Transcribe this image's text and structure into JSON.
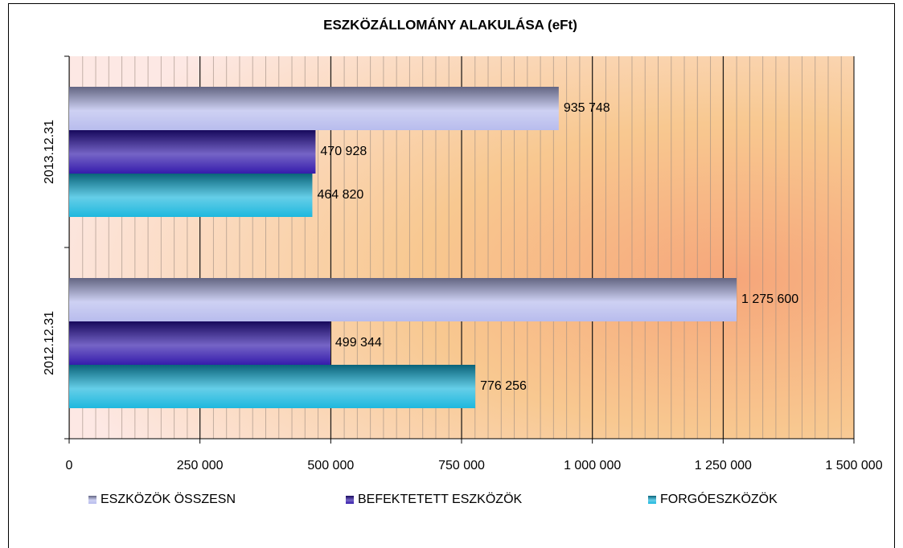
{
  "chart_data": {
    "type": "bar",
    "orientation": "horizontal",
    "title": "ESZKÖZÁLLOMÁNY ALAKULÁSA (eFt)",
    "categories": [
      "2013.12.31",
      "2012.12.31"
    ],
    "series": [
      {
        "name": "ESZKÖZÖK ÖSSZESN",
        "color": "#b4b8ec",
        "values": [
          935748,
          1275600
        ],
        "value_labels": [
          "935 748",
          "1 275 600"
        ]
      },
      {
        "name": "BEFEKTETETT ESZKÖZÖK",
        "color": "#2a10a8",
        "values": [
          470928,
          499344
        ],
        "value_labels": [
          "470 928",
          "499 344"
        ]
      },
      {
        "name": "FORGÓESZKÖZÖK",
        "color": "#12b4dc",
        "values": [
          464820,
          776256
        ],
        "value_labels": [
          "464 820",
          "776 256"
        ]
      }
    ],
    "xlim": [
      0,
      1500000
    ],
    "xticks": [
      0,
      {
        "value": 250000,
        "label": "250 000"
      },
      {
        "value": 500000,
        "label": "500 000"
      },
      {
        "value": 750000,
        "label": "750 000"
      },
      {
        "value": 1000000,
        "label": "1 000 000"
      },
      {
        "value": 1250000,
        "label": "1 250 000"
      },
      {
        "value": 1500000,
        "label": "1 500 000"
      }
    ],
    "grid": true,
    "legend": "bottom"
  }
}
